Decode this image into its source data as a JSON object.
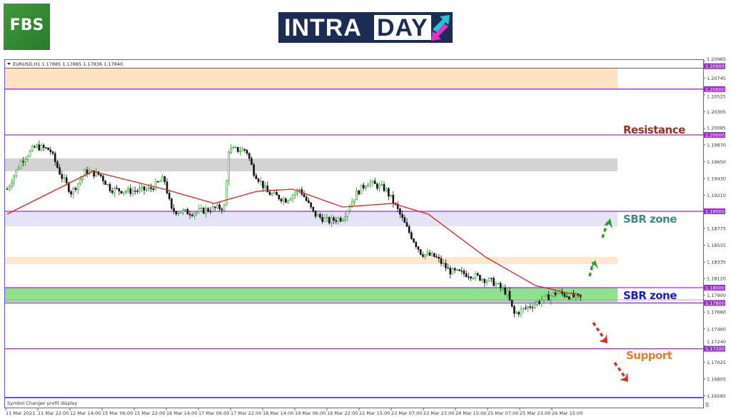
{
  "branding": {
    "fbs": "FBS",
    "intraday_left": "INTRA",
    "intraday_right": "DAY"
  },
  "chart_data": {
    "type": "candlestick",
    "symbol_header": "EURUSD,H1  1.17885 1.17885 1.17836 1.17840",
    "footer_label": "Symbol Changer profit display",
    "ylim": [
      1.165,
      1.2105
    ],
    "y_ticks": [
      "1.20965",
      "1.20745",
      "1.20525",
      "1.20305",
      "1.20085",
      "1.19870",
      "1.19650",
      "1.19430",
      "1.19210",
      "1.18775",
      "1.18555",
      "1.18335",
      "1.18120",
      "1.17900",
      "1.17680",
      "1.17460",
      "1.17240",
      "1.17025",
      "1.16805",
      "1.16585"
    ],
    "x_ticks": [
      "11 Mar 2021",
      "11 Mar 22:00",
      "12 Mar 14:00",
      "15 Mar 06:00",
      "15 Mar 22:00",
      "16 Mar 14:00",
      "17 Mar 06:00",
      "17 Mar 22:00",
      "18 Mar 14:00",
      "19 Mar 06:00",
      "19 Mar 22:00",
      "22 Mar 15:00",
      "23 Mar 07:00",
      "23 Mar 23:00",
      "24 Mar 15:00",
      "25 Mar 07:00",
      "25 Mar 23:00",
      "26 Mar 15:00"
    ],
    "close_path": [
      1.1929,
      1.19664,
      1.1985,
      1.19804,
      1.19477,
      1.19243,
      1.19523,
      1.19477,
      1.1929,
      1.19262,
      1.1929,
      1.1943,
      1.19009,
      1.18981,
      1.19037,
      1.19056,
      1.19804,
      1.19804,
      1.19523,
      1.19243,
      1.1915,
      1.1929,
      1.18963,
      1.18869,
      1.18916,
      1.19243,
      1.19383,
      1.1929,
      1.19056,
      1.18776,
      1.18449,
      1.18402,
      1.18215,
      1.18168,
      1.18075,
      1.17935,
      1.17654,
      1.17748,
      1.17841,
      1.17935,
      1.17888,
      1.1786
    ],
    "moving_average": [
      1.18963,
      1.19523,
      1.1929,
      1.19103,
      1.19262,
      1.1929,
      1.19056,
      1.19103,
      1.18963,
      1.18402,
      1.18028,
      1.17888
    ],
    "current_price": 1.1784,
    "levels": [
      {
        "price": "1.20900",
        "value": 1.209
      },
      {
        "price": "1.20600",
        "value": 1.206
      },
      {
        "price": "1.20000",
        "value": 1.2
      },
      {
        "price": "1.19000",
        "value": 1.19
      },
      {
        "price": "1.18000",
        "value": 1.18
      },
      {
        "price": "1.17800",
        "value": 1.178
      },
      {
        "price": "1.17200",
        "value": 1.172
      }
    ],
    "zones": [
      {
        "from": 1.209,
        "to": 1.206,
        "color": "#fde3c4"
      },
      {
        "from": 1.19692,
        "to": 1.19523,
        "color": "#d3d3d3"
      },
      {
        "from": 1.19,
        "to": 1.18804,
        "color": "#e4e4f6"
      },
      {
        "from": 1.18402,
        "to": 1.18308,
        "color": "#fde7cf"
      },
      {
        "from": 1.18,
        "to": 1.17813,
        "color": "#8fe08f"
      }
    ],
    "annotations": [
      {
        "text": "Resistance",
        "color": "#a0311a"
      },
      {
        "text": "SBR zone",
        "color": "#3c8c88"
      },
      {
        "text": "SBR zone",
        "color": "#1a1adf"
      },
      {
        "text": "Support",
        "color": "#f07a30"
      }
    ],
    "colors": {
      "level_line": "#9b30d0",
      "axis": "#5b5bd6",
      "ma": "#e02020",
      "bull": "#1a9a1a",
      "bear": "#111111"
    }
  }
}
